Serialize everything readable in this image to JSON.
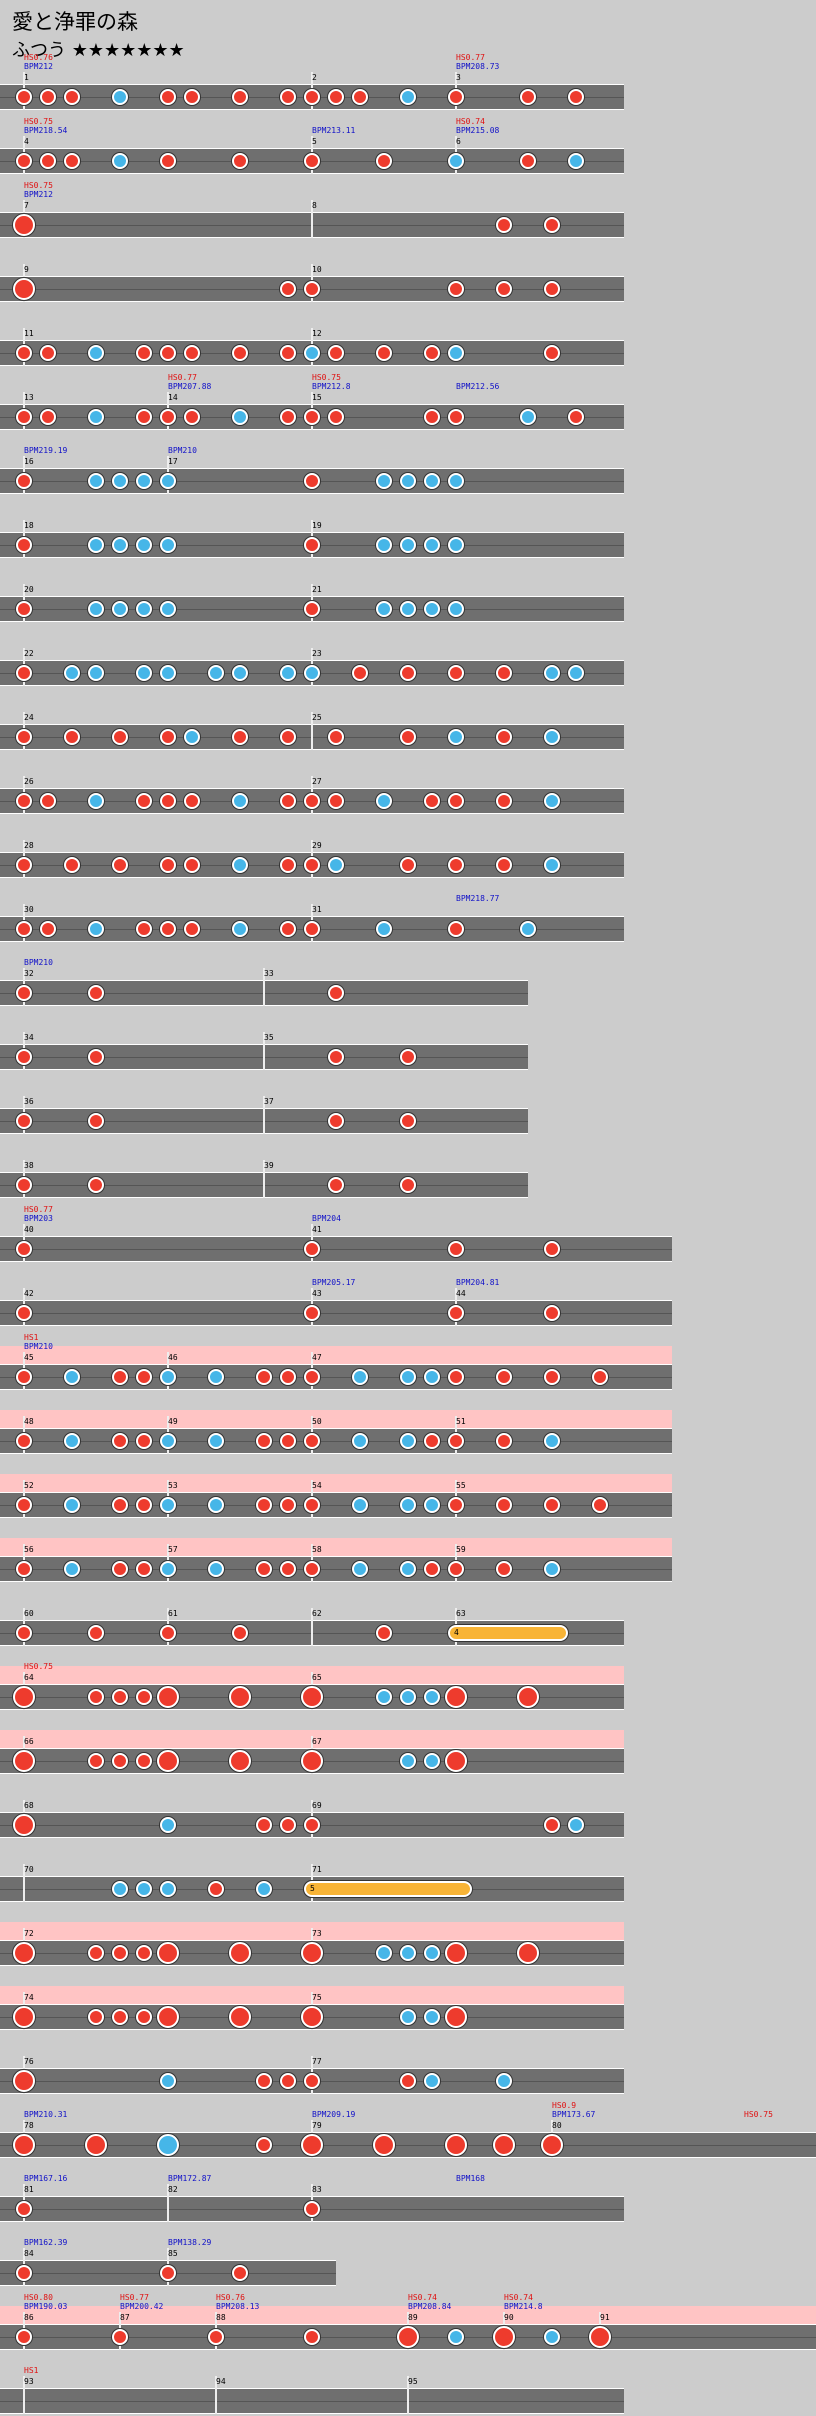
{
  "song": {
    "title": "愛と浄罪の森",
    "difficulty": "ふつう ★★★★★★★"
  },
  "colors": {
    "don": "#ee3b2d",
    "ka": "#46b6e8",
    "roll": "#f8b436",
    "gogo": "#ffc4c4",
    "lane": "#6f6f6f",
    "bpm_label": "#1010c8",
    "hs_label": "#e01010"
  },
  "rows": [
    {
      "n": 1,
      "bars": [
        "1",
        "2",
        "3"
      ],
      "labels": [
        [
          "hs",
          "HS0.76"
        ],
        [
          "bpm",
          "BPM212"
        ],
        [],
        [],
        [],
        [],
        [
          "hs",
          "HS0.77"
        ],
        [
          "bpm",
          "BPM208.73"
        ]
      ],
      "notes": "dddkdddddddkddd"
    },
    {
      "n": 2,
      "bars": [
        "4",
        "5",
        "6"
      ],
      "labels": [
        [
          "hs",
          "HS0.75"
        ],
        [
          "bpm",
          "BPM218.54"
        ],
        [],
        [],
        [
          "bpm",
          "BPM213.11"
        ],
        [],
        [
          "hs",
          "HS0.74"
        ],
        [
          "bpm",
          "BPM215.08"
        ]
      ],
      "notes": "dddkddddkdk"
    },
    {
      "n": 3,
      "bars": [
        "7",
        "8"
      ],
      "labels": [
        [
          "hs",
          "HS0.75"
        ],
        [
          "bpm",
          "BPM212"
        ]
      ],
      "notes": "Ddd"
    },
    {
      "n": 4,
      "bars": [
        "9",
        "10"
      ],
      "notes": "Dddddd"
    },
    {
      "n": 5,
      "bars": [
        "11",
        "12"
      ],
      "notes": "ddkdddddkdddkd"
    },
    {
      "n": 6,
      "bars": [
        "13",
        "14",
        "15"
      ],
      "labels": [
        [],
        [],
        [
          "hs",
          "HS0.77"
        ],
        [
          "bpm",
          "BPM207.88"
        ],
        [
          "hs",
          "HS0.75"
        ],
        [
          "bpm",
          "BPM212.8"
        ],
        [
          "bpm",
          "BPM212.56"
        ]
      ],
      "notes": "ddkdddkdddddkd"
    },
    {
      "n": 7,
      "bars": [
        "16",
        "17"
      ],
      "labels": [
        [
          "bpm",
          "BPM219.19"
        ],
        [
          "bpm",
          "BPM210"
        ]
      ],
      "notes": "dkkkkdkkkk"
    },
    {
      "n": 8,
      "bars": [
        "18",
        "19"
      ],
      "notes": "dkkkkdkkkk"
    },
    {
      "n": 9,
      "bars": [
        "20",
        "21"
      ],
      "notes": "dkkkkdkkkk"
    },
    {
      "n": 10,
      "bars": [
        "22",
        "23"
      ],
      "notes": "dkkkkkkkkddddkk"
    },
    {
      "n": 11,
      "bars": [
        "24",
        "25"
      ],
      "notes": "ddddkddddkdk"
    },
    {
      "n": 12,
      "bars": [
        "26",
        "27"
      ],
      "notes": "ddkdddkdddkdddkdk"
    },
    {
      "n": 13,
      "bars": [
        "28",
        "29"
      ],
      "notes": "dddddkddkdddk"
    },
    {
      "n": 14,
      "bars": [
        "30",
        "31"
      ],
      "labels": [
        [
          "bpm",
          "BPM218.77"
        ]
      ],
      "notes": "ddkdddkddkdk"
    },
    {
      "n": 15,
      "bars": [
        "32",
        "33"
      ],
      "labels": [
        [
          "bpm",
          "BPM210"
        ]
      ],
      "notes": "ddd"
    },
    {
      "n": 16,
      "bars": [
        "34",
        "35"
      ],
      "notes": "dddd"
    },
    {
      "n": 17,
      "bars": [
        "36",
        "37"
      ],
      "notes": "dddd"
    },
    {
      "n": 18,
      "bars": [
        "38",
        "39"
      ],
      "notes": "dddd"
    },
    {
      "n": 19,
      "bars": [
        "40",
        "41"
      ],
      "labels": [
        [
          "hs",
          "HS0.77"
        ],
        [
          "bpm",
          "BPM203"
        ],
        [
          "bpm",
          "BPM204"
        ]
      ],
      "notes": "dddd"
    },
    {
      "n": 20,
      "bars": [
        "42",
        "43",
        "44"
      ],
      "labels": [
        [
          "bpm",
          "BPM205.17"
        ],
        [
          "bpm",
          "BPM204.81"
        ]
      ],
      "notes": "dddd"
    },
    {
      "n": 21,
      "bars": [
        "45",
        "46",
        "47"
      ],
      "labels": [
        [
          "hs",
          "HS1"
        ],
        [
          "bpm",
          "BPM210"
        ]
      ],
      "notes": "dkddkkdddkkkdddd"
    },
    {
      "n": 22,
      "bars": [
        "48",
        "49",
        "50",
        "51"
      ],
      "notes": "dkddkkdddkkdddkdd"
    },
    {
      "n": 23,
      "bars": [
        "52",
        "53",
        "54",
        "55"
      ],
      "notes": "dkddkkdddkkkddddd"
    },
    {
      "n": 24,
      "bars": [
        "56",
        "57",
        "58",
        "59"
      ],
      "notes": "dkddkkdddkkdddkdd"
    },
    {
      "n": 25,
      "bars": [
        "60",
        "61",
        "62",
        "63"
      ],
      "notes": "ddddd",
      "roll": "4"
    },
    {
      "n": 26,
      "bars": [
        "64",
        "65"
      ],
      "labels": [
        [
          "hs",
          "HS0.75"
        ]
      ],
      "notes": "DdddDDDkkkDD"
    },
    {
      "n": 27,
      "bars": [
        "66",
        "67"
      ],
      "notes": "DdddDDDkkD"
    },
    {
      "n": 28,
      "bars": [
        "68",
        "69"
      ],
      "notes": "Dkddddkk"
    },
    {
      "n": 29,
      "bars": [
        "70",
        "71"
      ],
      "notes": "kkkdkk",
      "roll": "5"
    },
    {
      "n": 30,
      "bars": [
        "72",
        "73"
      ],
      "notes": "DdddDDDkkkDD"
    },
    {
      "n": 31,
      "bars": [
        "74",
        "75"
      ],
      "notes": "DdddDDDkkD"
    },
    {
      "n": 32,
      "bars": [
        "76",
        "77"
      ],
      "notes": "Dkddddkkk"
    },
    {
      "n": 33,
      "bars": [
        "78",
        "79",
        "80"
      ],
      "labels": [
        [
          "bpm",
          "BPM210.31"
        ],
        [
          "bpm",
          "BPM209.19"
        ],
        [
          "hs",
          "HS0.9"
        ],
        [
          "bpm",
          "BPM173.67"
        ],
        [
          "hs",
          "HS0.75"
        ]
      ],
      "notes": "DDKdDDDDDK"
    },
    {
      "n": 34,
      "bars": [
        "81",
        "82",
        "83"
      ],
      "labels": [
        [
          "bpm",
          "BPM167.16"
        ],
        [
          "bpm",
          "BPM172.87"
        ],
        [
          "bpm",
          "BPM168"
        ]
      ],
      "notes": "dd"
    },
    {
      "n": 35,
      "bars": [
        "84",
        "85"
      ],
      "labels": [
        [
          "bpm",
          "BPM162.39"
        ],
        [
          "bpm",
          "BPM138.29"
        ]
      ],
      "notes": "ddd"
    },
    {
      "n": 36,
      "bars": [
        "86",
        "87",
        "88",
        "89",
        "90",
        "91",
        "92"
      ],
      "labels": [
        [
          "hs",
          "HS0.80"
        ],
        [
          "bpm",
          "BPM190.03"
        ],
        [
          "hs",
          "HS0.77"
        ],
        [
          "bpm",
          "BPM200.42"
        ],
        [
          "hs",
          "HS0.76"
        ],
        [
          "bpm",
          "BPM208.13"
        ],
        [
          "hs",
          "HS0.74"
        ],
        [
          "bpm",
          "BPM208.84"
        ],
        [
          "hs",
          "HS0.74"
        ],
        [
          "bpm",
          "BPM214.8"
        ]
      ],
      "notes": "ddddDkDkD"
    },
    {
      "n": 37,
      "bars": [
        "93",
        "94",
        "95"
      ],
      "labels": [
        [
          "hs",
          "HS1"
        ]
      ],
      "notes": ""
    }
  ]
}
